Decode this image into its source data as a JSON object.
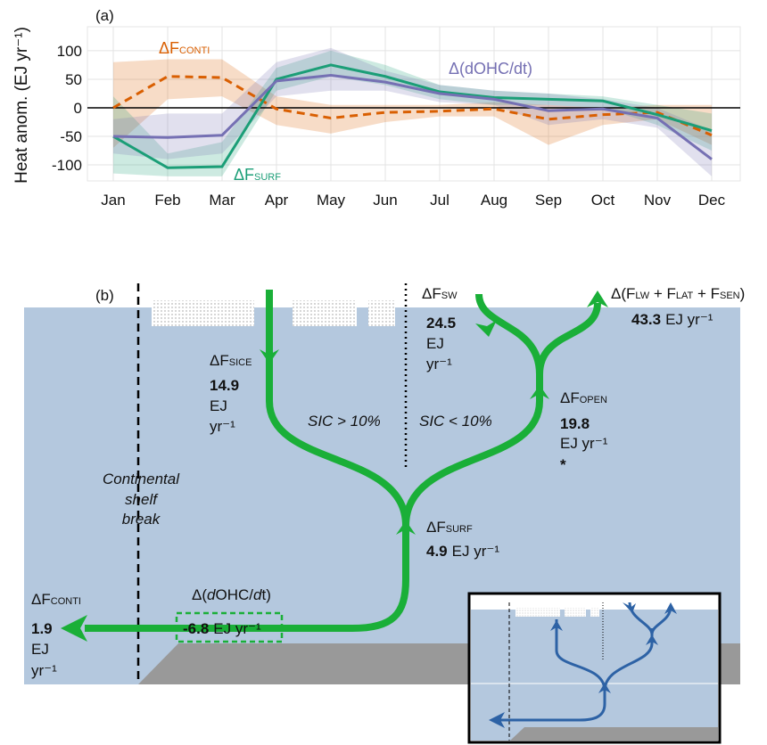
{
  "chart_data": {
    "type": "line",
    "title": "(a)",
    "ylabel": "Heat anom. (EJ yr⁻¹)",
    "categories": [
      "Jan",
      "Feb",
      "Mar",
      "Apr",
      "May",
      "Jun",
      "Jul",
      "Aug",
      "Sep",
      "Oct",
      "Nov",
      "Dec"
    ],
    "ylim": [
      -128,
      142
    ],
    "yticks": [
      -100,
      -50,
      0,
      50,
      100
    ],
    "grid": true,
    "series": [
      {
        "name": "ΔF",
        "name_sub": "CONTI",
        "color": "#d95f02",
        "dashed": true,
        "values": [
          0,
          55,
          53,
          -2,
          -18,
          -8,
          -6,
          -2,
          -20,
          -12,
          -8,
          -48
        ],
        "lower": [
          -70,
          15,
          20,
          -30,
          -45,
          -25,
          -15,
          -15,
          -65,
          -30,
          -20,
          -65
        ],
        "upper": [
          80,
          85,
          85,
          20,
          5,
          5,
          5,
          10,
          5,
          0,
          5,
          5
        ]
      },
      {
        "name": "ΔF",
        "name_sub": "SURF",
        "color": "#1b9e77",
        "dashed": false,
        "values": [
          -50,
          -105,
          -103,
          50,
          75,
          55,
          28,
          18,
          15,
          12,
          -12,
          -40
        ],
        "lower": [
          -115,
          -120,
          -120,
          30,
          55,
          40,
          15,
          5,
          5,
          0,
          -30,
          -75
        ],
        "upper": [
          20,
          -80,
          -60,
          70,
          100,
          75,
          40,
          30,
          25,
          20,
          5,
          -10
        ]
      },
      {
        "name": "Δ(dOHC/dt)",
        "color": "#7570b3",
        "dashed": false,
        "values": [
          -50,
          -52,
          -48,
          47,
          57,
          45,
          25,
          15,
          -5,
          -2,
          -18,
          -90
        ],
        "lower": [
          -80,
          -90,
          -80,
          20,
          30,
          30,
          10,
          5,
          -30,
          -20,
          -35,
          -120
        ],
        "upper": [
          -20,
          -10,
          -10,
          80,
          105,
          65,
          40,
          30,
          25,
          15,
          0,
          -40
        ]
      }
    ]
  },
  "diagram": {
    "panel_label": "(b)",
    "sice": {
      "symbol": "ΔF",
      "sub": "SICE",
      "value": "14.9",
      "unit1": "EJ",
      "unit2": "yr⁻¹"
    },
    "sw": {
      "symbol": "ΔF",
      "sub": "SW",
      "value": "24.5",
      "unit1": "EJ",
      "unit2": "yr⁻¹"
    },
    "atm": {
      "parts": [
        "Δ(F",
        "LW",
        " + F",
        "LAT",
        " + F",
        "SEN",
        ")"
      ],
      "value": "43.3",
      "unit": "EJ yr⁻¹"
    },
    "open": {
      "symbol": "ΔF",
      "sub": "OPEN",
      "value": "19.8",
      "unit": "EJ yr⁻¹",
      "note": "*"
    },
    "surf": {
      "symbol": "ΔF",
      "sub": "SURF",
      "value": "4.9",
      "unit": "EJ yr⁻¹"
    },
    "conti": {
      "symbol": "ΔF",
      "sub": "CONTI",
      "value": "1.9",
      "unit1": "EJ",
      "unit2": "yr⁻¹"
    },
    "ohc": {
      "parts": [
        "Δ(",
        "d",
        "OHC/",
        "d",
        "t)"
      ],
      "value": "-6.8",
      "unit": "EJ yr⁻¹"
    },
    "regions": [
      "SIC > 10%",
      "SIC < 10%"
    ],
    "shelf_break": [
      "Continental",
      "shelf",
      "break"
    ]
  }
}
